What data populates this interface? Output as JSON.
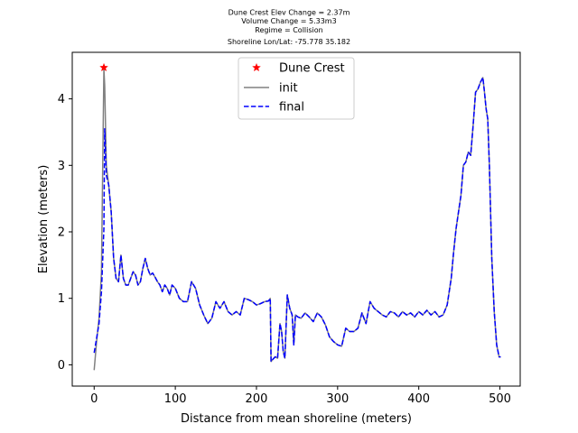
{
  "chart_data": {
    "type": "line",
    "title_lines": [
      "Dune Crest Elev Change = 2.37m",
      "Volume Change = 5.33m3",
      "Regime = Collision",
      "Shoreline Lon/Lat: -75.778 35.182"
    ],
    "xlabel": "Distance from mean shoreline (meters)",
    "ylabel": "Elevation (meters)",
    "xlim": [
      -27,
      525
    ],
    "ylim": [
      -0.32,
      4.7
    ],
    "xticks": [
      0,
      100,
      200,
      300,
      400,
      500
    ],
    "yticks": [
      0,
      1,
      2,
      3,
      4
    ],
    "grid": false,
    "legend_position": "top-center",
    "series": [
      {
        "name": "Dune Crest",
        "style": "marker",
        "marker": "star",
        "color": "#ff0000",
        "x": [
          12
        ],
        "y": [
          4.47
        ]
      },
      {
        "name": "init",
        "style": "solid",
        "color": "#808080",
        "x": [
          0,
          3,
          6,
          9,
          12,
          13,
          15,
          18,
          21,
          24,
          27,
          30,
          33,
          36,
          39,
          42,
          45,
          48,
          51,
          54,
          57,
          60,
          63,
          66,
          69,
          72,
          75,
          78,
          81,
          84,
          87,
          90,
          93,
          96,
          100,
          105,
          110,
          115,
          120,
          125,
          130,
          135,
          140,
          145,
          150,
          155,
          160,
          165,
          170,
          175,
          180,
          185,
          190,
          195,
          200,
          205,
          210,
          215,
          217,
          218,
          220,
          223,
          226,
          229,
          231,
          233,
          235,
          238,
          241,
          244,
          246,
          248,
          251,
          255,
          260,
          265,
          270,
          275,
          280,
          285,
          290,
          295,
          300,
          305,
          310,
          315,
          320,
          325,
          330,
          335,
          340,
          345,
          350,
          355,
          360,
          365,
          370,
          375,
          380,
          385,
          390,
          395,
          400,
          405,
          410,
          415,
          420,
          425,
          430,
          435,
          440,
          443,
          446,
          449,
          452,
          455,
          458,
          461,
          464,
          467,
          470,
          473,
          476,
          479,
          481,
          483,
          485,
          487,
          490,
          493,
          496,
          499,
          501
        ],
        "y": [
          -0.08,
          0.35,
          0.7,
          1.4,
          4.45,
          4.2,
          3.0,
          2.7,
          2.3,
          1.6,
          1.3,
          1.25,
          1.65,
          1.3,
          1.2,
          1.2,
          1.3,
          1.4,
          1.35,
          1.2,
          1.25,
          1.45,
          1.6,
          1.45,
          1.35,
          1.38,
          1.32,
          1.25,
          1.2,
          1.1,
          1.2,
          1.15,
          1.05,
          1.2,
          1.15,
          1.0,
          0.95,
          0.95,
          1.25,
          1.15,
          0.9,
          0.75,
          0.62,
          0.7,
          0.95,
          0.85,
          0.95,
          0.8,
          0.75,
          0.8,
          0.75,
          1.0,
          0.98,
          0.95,
          0.9,
          0.92,
          0.95,
          0.96,
          1.0,
          0.05,
          0.08,
          0.12,
          0.1,
          0.62,
          0.5,
          0.2,
          0.1,
          1.05,
          0.85,
          0.75,
          0.3,
          0.75,
          0.72,
          0.7,
          0.78,
          0.72,
          0.65,
          0.78,
          0.72,
          0.6,
          0.42,
          0.35,
          0.3,
          0.28,
          0.55,
          0.5,
          0.5,
          0.55,
          0.78,
          0.62,
          0.95,
          0.85,
          0.8,
          0.75,
          0.72,
          0.8,
          0.78,
          0.72,
          0.8,
          0.75,
          0.78,
          0.72,
          0.8,
          0.75,
          0.82,
          0.75,
          0.8,
          0.72,
          0.75,
          0.9,
          1.3,
          1.7,
          2.05,
          2.3,
          2.55,
          3.0,
          3.05,
          3.2,
          3.15,
          3.6,
          4.1,
          4.15,
          4.25,
          4.32,
          4.1,
          3.85,
          3.7,
          3.0,
          1.6,
          0.8,
          0.3,
          0.12,
          0.12
        ]
      },
      {
        "name": "final",
        "style": "dashed",
        "color": "#0000ff",
        "x": [
          0,
          3,
          6,
          9,
          12,
          13,
          15,
          18,
          21,
          24,
          27,
          30,
          33,
          36,
          39,
          42,
          45,
          48,
          51,
          54,
          57,
          60,
          63,
          66,
          69,
          72,
          75,
          78,
          81,
          84,
          87,
          90,
          93,
          96,
          100,
          105,
          110,
          115,
          120,
          125,
          130,
          135,
          140,
          145,
          150,
          155,
          160,
          165,
          170,
          175,
          180,
          185,
          190,
          195,
          200,
          205,
          210,
          215,
          217,
          218,
          220,
          223,
          226,
          229,
          231,
          233,
          235,
          238,
          241,
          244,
          246,
          248,
          251,
          255,
          260,
          265,
          270,
          275,
          280,
          285,
          290,
          295,
          300,
          305,
          310,
          315,
          320,
          325,
          330,
          335,
          340,
          345,
          350,
          355,
          360,
          365,
          370,
          375,
          380,
          385,
          390,
          395,
          400,
          405,
          410,
          415,
          420,
          425,
          430,
          435,
          440,
          443,
          446,
          449,
          452,
          455,
          458,
          461,
          464,
          467,
          470,
          473,
          476,
          479,
          481,
          483,
          485,
          487,
          490,
          493,
          496,
          499,
          501
        ],
        "y": [
          0.18,
          0.4,
          0.62,
          1.1,
          2.05,
          3.55,
          2.85,
          2.7,
          2.3,
          1.6,
          1.3,
          1.25,
          1.65,
          1.3,
          1.2,
          1.2,
          1.3,
          1.4,
          1.35,
          1.2,
          1.25,
          1.45,
          1.6,
          1.45,
          1.35,
          1.38,
          1.32,
          1.25,
          1.2,
          1.1,
          1.2,
          1.15,
          1.05,
          1.2,
          1.15,
          1.0,
          0.95,
          0.95,
          1.25,
          1.15,
          0.9,
          0.75,
          0.62,
          0.7,
          0.95,
          0.85,
          0.95,
          0.8,
          0.75,
          0.8,
          0.75,
          1.0,
          0.98,
          0.95,
          0.9,
          0.92,
          0.95,
          0.96,
          1.0,
          0.05,
          0.08,
          0.12,
          0.1,
          0.62,
          0.5,
          0.2,
          0.1,
          1.05,
          0.85,
          0.75,
          0.3,
          0.75,
          0.72,
          0.7,
          0.78,
          0.72,
          0.65,
          0.78,
          0.72,
          0.6,
          0.42,
          0.35,
          0.3,
          0.28,
          0.55,
          0.5,
          0.5,
          0.55,
          0.78,
          0.62,
          0.95,
          0.85,
          0.8,
          0.75,
          0.72,
          0.8,
          0.78,
          0.72,
          0.8,
          0.75,
          0.78,
          0.72,
          0.8,
          0.75,
          0.82,
          0.75,
          0.8,
          0.72,
          0.75,
          0.9,
          1.3,
          1.7,
          2.05,
          2.3,
          2.55,
          3.0,
          3.05,
          3.2,
          3.15,
          3.6,
          4.1,
          4.15,
          4.25,
          4.32,
          4.1,
          3.85,
          3.7,
          3.0,
          1.6,
          0.8,
          0.3,
          0.12,
          0.12
        ]
      }
    ]
  }
}
